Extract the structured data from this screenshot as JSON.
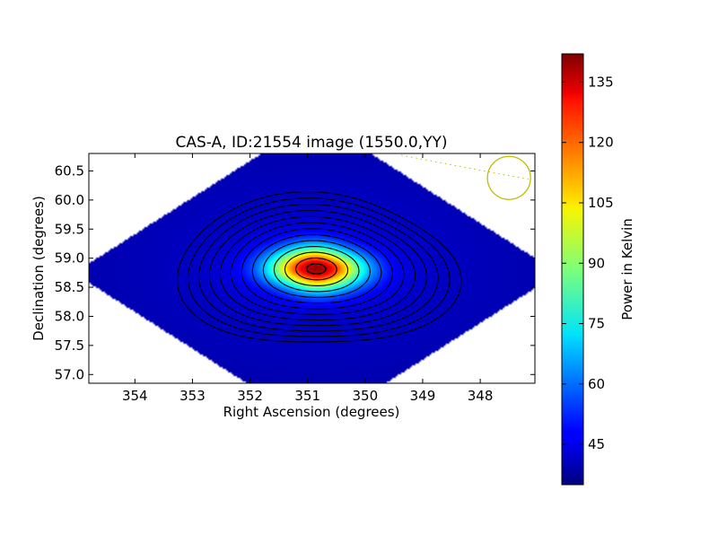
{
  "chart_data": {
    "type": "heatmap",
    "title": "CAS-A, ID:21554 image (1550.0,YY)",
    "xlabel": "Right Ascension (degrees)",
    "ylabel": "Declination (degrees)",
    "xlim": [
      354.8,
      347.05
    ],
    "ylim": [
      56.85,
      60.8
    ],
    "x_ticks": [
      354,
      353,
      352,
      351,
      350,
      349,
      348
    ],
    "y_ticks": [
      57.0,
      57.5,
      58.0,
      58.5,
      59.0,
      59.5,
      60.0,
      60.5
    ],
    "colorbar": {
      "label": "Power in Kelvin",
      "range": [
        35,
        142
      ],
      "ticks": [
        45,
        60,
        75,
        90,
        105,
        120,
        135
      ],
      "colormap": "jet"
    },
    "peak": {
      "ra": 350.85,
      "dec": 58.82,
      "value": 142
    },
    "background_level": 40,
    "contour_count": 13,
    "beam_marker": {
      "ra": 347.5,
      "dec": 60.38,
      "color": "#bfbf00"
    },
    "grid": false,
    "colors": {
      "contour": "#000000",
      "beam": "#bfbf00",
      "missing": "#ffffff"
    }
  }
}
